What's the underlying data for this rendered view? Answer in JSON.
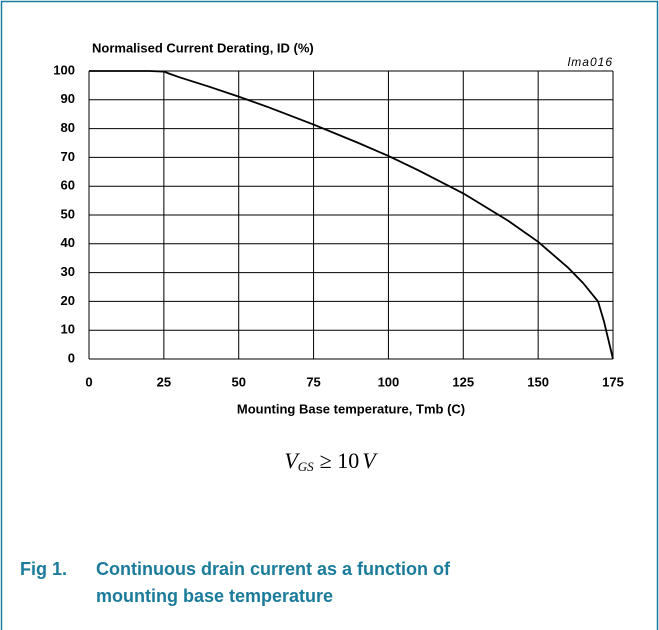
{
  "chart_data": {
    "type": "line",
    "title": "Normalised Current Derating, ID (%)",
    "annotation": "lma016",
    "x_label": "Mounting Base temperature, Tmb (C)",
    "x": [
      0,
      5,
      10,
      15,
      20,
      25,
      27,
      30,
      40,
      50,
      60,
      75,
      90,
      100,
      110,
      125,
      140,
      150,
      160,
      165,
      170,
      172,
      175
    ],
    "series": [
      {
        "color": "#000000",
        "values": [
          100,
          100,
          100,
          100,
          100,
          99.8,
          99,
          97.9,
          94.6,
          91.1,
          87.4,
          81.4,
          75,
          70.5,
          65.5,
          57.5,
          48,
          40.7,
          31.7,
          26.4,
          20,
          13,
          0
        ]
      }
    ],
    "xlim": [
      0,
      175
    ],
    "xticks": [
      0,
      25,
      50,
      75,
      100,
      125,
      150,
      175
    ],
    "ylim": [
      0,
      100
    ],
    "yticks": [
      0,
      10,
      20,
      30,
      40,
      50,
      60,
      70,
      80,
      90,
      100
    ],
    "grid": true
  },
  "formula": {
    "symbol": "V",
    "subscript": "GS",
    "relation": "≥ 10",
    "unit": "V"
  },
  "figure": {
    "label": "Fig 1.",
    "caption_lines": [
      "Continuous drain current as a function of",
      "mounting base temperature"
    ],
    "color": "#1a7b9b"
  }
}
